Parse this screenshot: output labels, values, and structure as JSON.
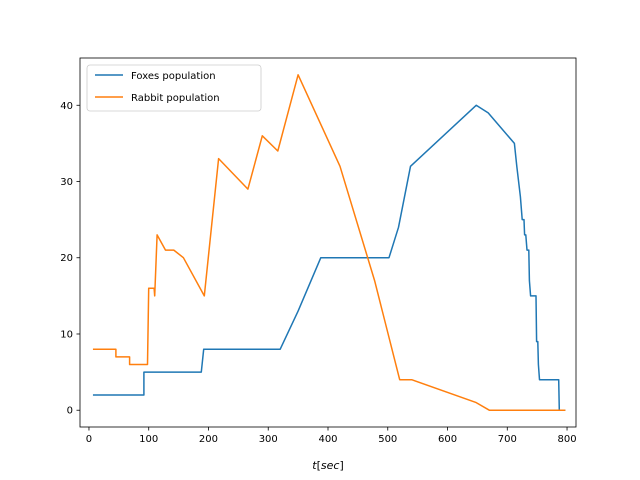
{
  "chart_data": {
    "type": "line",
    "title": "",
    "xlabel_parts": {
      "var": "t",
      "unit": "sec"
    },
    "ylabel": "",
    "xlim": [
      -15,
      815
    ],
    "ylim": [
      -2.2,
      46.2
    ],
    "xticks": [
      0,
      100,
      200,
      300,
      400,
      500,
      600,
      700,
      800
    ],
    "yticks": [
      0,
      10,
      20,
      30,
      40
    ],
    "grid": false,
    "legend": {
      "placement": "upper-left"
    },
    "series": [
      {
        "name": "Foxes population",
        "color": "#1f77b4",
        "points": [
          [
            8,
            2
          ],
          [
            92,
            2
          ],
          [
            92,
            5
          ],
          [
            188,
            5
          ],
          [
            192,
            8
          ],
          [
            320,
            8
          ],
          [
            350,
            13
          ],
          [
            388,
            20
          ],
          [
            502,
            20
          ],
          [
            518,
            24
          ],
          [
            538,
            32
          ],
          [
            648,
            40
          ],
          [
            668,
            39
          ],
          [
            712,
            35
          ],
          [
            716,
            32
          ],
          [
            722,
            28
          ],
          [
            725,
            25
          ],
          [
            728,
            25
          ],
          [
            729,
            23
          ],
          [
            731,
            23
          ],
          [
            733,
            21
          ],
          [
            736,
            21
          ],
          [
            737,
            17
          ],
          [
            739,
            15
          ],
          [
            748,
            15
          ],
          [
            749,
            9
          ],
          [
            751,
            9
          ],
          [
            752,
            6
          ],
          [
            754,
            4
          ],
          [
            786,
            4
          ],
          [
            787,
            0
          ],
          [
            796,
            0
          ]
        ]
      },
      {
        "name": "Rabbit population",
        "color": "#ff7f0e",
        "points": [
          [
            8,
            8
          ],
          [
            45,
            8
          ],
          [
            45,
            7
          ],
          [
            68,
            7
          ],
          [
            68,
            6
          ],
          [
            98,
            6
          ],
          [
            100,
            16
          ],
          [
            109,
            16
          ],
          [
            110,
            15
          ],
          [
            114,
            23
          ],
          [
            128,
            21
          ],
          [
            142,
            21
          ],
          [
            158,
            20
          ],
          [
            193,
            15
          ],
          [
            217,
            33
          ],
          [
            266,
            29
          ],
          [
            290,
            36
          ],
          [
            316,
            34
          ],
          [
            350,
            44
          ],
          [
            420,
            32
          ],
          [
            478,
            17
          ],
          [
            520,
            4
          ],
          [
            540,
            4
          ],
          [
            648,
            1
          ],
          [
            670,
            0
          ],
          [
            796,
            0
          ]
        ]
      }
    ]
  }
}
